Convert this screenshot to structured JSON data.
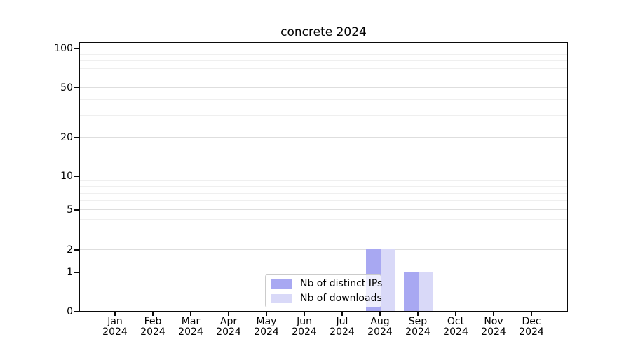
{
  "chart_data": {
    "type": "bar",
    "title": "concrete 2024",
    "x": {
      "months": [
        "Jan",
        "Feb",
        "Mar",
        "Apr",
        "May",
        "Jun",
        "Jul",
        "Aug",
        "Sep",
        "Oct",
        "Nov",
        "Dec"
      ],
      "year": "2024"
    },
    "series": [
      {
        "name": "Nb of distinct IPs",
        "color": "#a8a8f2",
        "values": [
          0,
          0,
          0,
          0,
          0,
          0,
          0,
          2,
          1,
          0,
          0,
          0
        ]
      },
      {
        "name": "Nb of downloads",
        "color": "#d9d9f8",
        "values": [
          0,
          0,
          0,
          0,
          0,
          0,
          0,
          2,
          1,
          0,
          0,
          0
        ]
      }
    ],
    "y_axis": {
      "scale": "symlog-like",
      "major_ticks": [
        0,
        1,
        2,
        5,
        10,
        20,
        50,
        100
      ],
      "minor_ticks": [
        3,
        4,
        6,
        7,
        8,
        9,
        30,
        40,
        60,
        70,
        80,
        90
      ],
      "ylim": [
        0,
        112
      ]
    },
    "grid": true,
    "legend": {
      "position": "bottom-center"
    },
    "style": {
      "grid_major_color": "#dedede",
      "grid_minor_color": "#efefef",
      "axis_color": "#0a0a0a",
      "background": "#ffffff"
    }
  }
}
